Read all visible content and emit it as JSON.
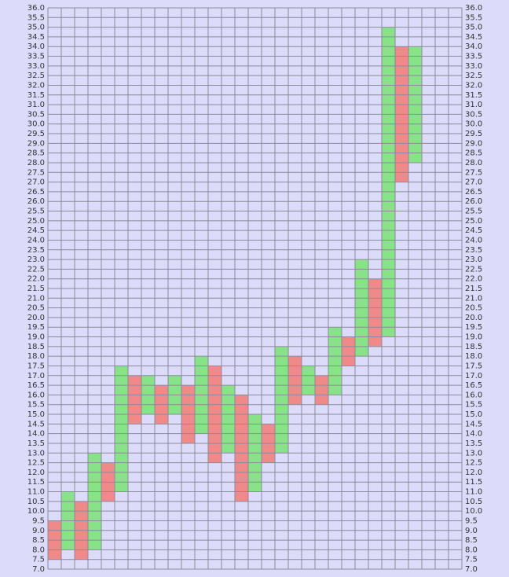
{
  "chart_data": {
    "type": "point-and-figure",
    "xlim": [
      0,
      31
    ],
    "ylim": [
      7,
      36
    ],
    "grid": true,
    "yticks": [
      {
        "value": 7,
        "label": "7.0"
      },
      {
        "value": 7.5,
        "label": "7.5"
      },
      {
        "value": 8,
        "label": "8.0"
      },
      {
        "value": 8.5,
        "label": "8.5"
      },
      {
        "value": 9,
        "label": "9.0"
      },
      {
        "value": 9.5,
        "label": "9.5"
      },
      {
        "value": 10,
        "label": "10.0"
      },
      {
        "value": 10.5,
        "label": "10.5"
      },
      {
        "value": 11,
        "label": "11.0"
      },
      {
        "value": 11.5,
        "label": "11.5"
      },
      {
        "value": 12,
        "label": "12.0"
      },
      {
        "value": 12.5,
        "label": "12.5"
      },
      {
        "value": 13,
        "label": "13.0"
      },
      {
        "value": 13.5,
        "label": "13.5"
      },
      {
        "value": 14,
        "label": "14.0"
      },
      {
        "value": 14.5,
        "label": "14.5"
      },
      {
        "value": 15,
        "label": "15.0"
      },
      {
        "value": 15.5,
        "label": "15.5"
      },
      {
        "value": 16,
        "label": "16.0"
      },
      {
        "value": 16.5,
        "label": "16.5"
      },
      {
        "value": 17,
        "label": "17.0"
      },
      {
        "value": 17.5,
        "label": "17.5"
      },
      {
        "value": 18,
        "label": "18.0"
      },
      {
        "value": 18.5,
        "label": "18.5"
      },
      {
        "value": 19,
        "label": "19.0"
      },
      {
        "value": 19.5,
        "label": "19.5"
      },
      {
        "value": 20,
        "label": "20.0"
      },
      {
        "value": 20.5,
        "label": "20.5"
      },
      {
        "value": 21,
        "label": "21.0"
      },
      {
        "value": 21.5,
        "label": "21.5"
      },
      {
        "value": 22,
        "label": "22.0"
      },
      {
        "value": 22.5,
        "label": "22.5"
      },
      {
        "value": 23,
        "label": "23.0"
      },
      {
        "value": 23.5,
        "label": "23.5"
      },
      {
        "value": 24,
        "label": "24.0"
      },
      {
        "value": 24.5,
        "label": "24.5"
      },
      {
        "value": 25,
        "label": "25.0"
      },
      {
        "value": 25.5,
        "label": "25.5"
      },
      {
        "value": 26,
        "label": "26.0"
      },
      {
        "value": 26.5,
        "label": "26.5"
      },
      {
        "value": 27,
        "label": "27.0"
      },
      {
        "value": 27.5,
        "label": "27.5"
      },
      {
        "value": 28,
        "label": "28.0"
      },
      {
        "value": 28.5,
        "label": "28.5"
      },
      {
        "value": 29,
        "label": "29.0"
      },
      {
        "value": 29.5,
        "label": "29.5"
      },
      {
        "value": 30,
        "label": "30.0"
      },
      {
        "value": 30.5,
        "label": "30.5"
      },
      {
        "value": 31,
        "label": "31.0"
      },
      {
        "value": 31.5,
        "label": "31.5"
      },
      {
        "value": 32,
        "label": "32.0"
      },
      {
        "value": 32.5,
        "label": "32.5"
      },
      {
        "value": 33,
        "label": "33.0"
      },
      {
        "value": 33.5,
        "label": "33.5"
      },
      {
        "value": 34,
        "label": "34.0"
      },
      {
        "value": 34.5,
        "label": "34.5"
      },
      {
        "value": 35,
        "label": "35.0"
      },
      {
        "value": 35.5,
        "label": "35.5"
      },
      {
        "value": 36,
        "label": "36.0"
      }
    ],
    "columns": [
      {
        "low": 7.5,
        "high": 9.5,
        "color": "#f08a8a"
      },
      {
        "low": 8,
        "high": 11,
        "color": "#88e288"
      },
      {
        "low": 7.5,
        "high": 10.5,
        "color": "#f08a8a"
      },
      {
        "low": 8,
        "high": 13,
        "color": "#88e288"
      },
      {
        "low": 10.5,
        "high": 12.5,
        "color": "#f08a8a"
      },
      {
        "low": 11,
        "high": 17.5,
        "color": "#88e288"
      },
      {
        "low": 14.5,
        "high": 17,
        "color": "#f08a8a"
      },
      {
        "low": 15,
        "high": 17,
        "color": "#88e288"
      },
      {
        "low": 14.5,
        "high": 16.5,
        "color": "#f08a8a"
      },
      {
        "low": 15,
        "high": 17,
        "color": "#88e288"
      },
      {
        "low": 13.5,
        "high": 16.5,
        "color": "#f08a8a"
      },
      {
        "low": 14,
        "high": 18,
        "color": "#88e288"
      },
      {
        "low": 12.5,
        "high": 17.5,
        "color": "#f08a8a"
      },
      {
        "low": 13,
        "high": 16.5,
        "color": "#88e288"
      },
      {
        "low": 10.5,
        "high": 16,
        "color": "#f08a8a"
      },
      {
        "low": 11,
        "high": 15,
        "color": "#88e288"
      },
      {
        "low": 12.5,
        "high": 14.5,
        "color": "#f08a8a"
      },
      {
        "low": 13,
        "high": 18.5,
        "color": "#88e288"
      },
      {
        "low": 15.5,
        "high": 18,
        "color": "#f08a8a"
      },
      {
        "low": 16,
        "high": 17.5,
        "color": "#88e288"
      },
      {
        "low": 15.5,
        "high": 17,
        "color": "#f08a8a"
      },
      {
        "low": 16,
        "high": 19.5,
        "color": "#88e288"
      },
      {
        "low": 17.5,
        "high": 19,
        "color": "#f08a8a"
      },
      {
        "low": 18,
        "high": 23,
        "color": "#88e288"
      },
      {
        "low": 18.5,
        "high": 22,
        "color": "#f08a8a"
      },
      {
        "low": 19,
        "high": 35,
        "color": "#88e288"
      },
      {
        "low": 27,
        "high": 34,
        "color": "#f08a8a"
      },
      {
        "low": 28,
        "high": 34,
        "color": "#88e288"
      }
    ]
  }
}
